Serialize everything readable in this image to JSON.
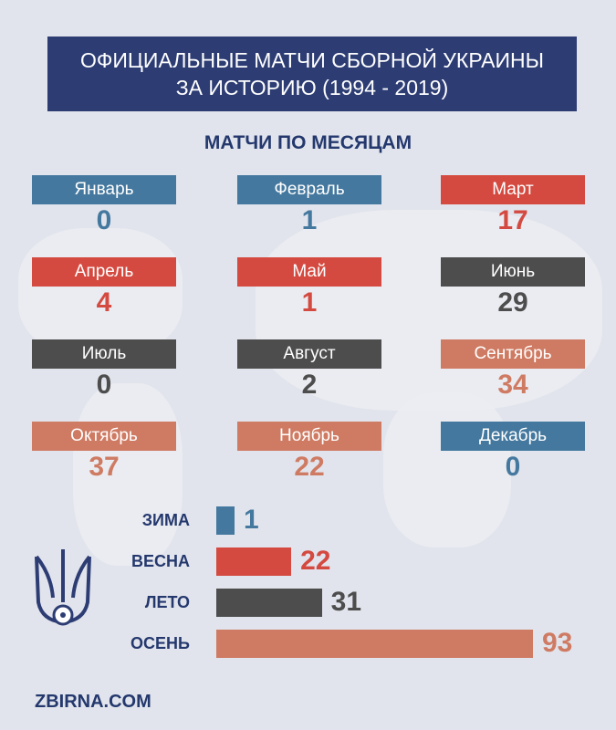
{
  "header": {
    "line1": "ОФИЦИАЛЬНЫЕ МАТЧИ СБОРНОЙ УКРАИНЫ",
    "line2": "ЗА ИСТОРИЮ (1994 - 2019)"
  },
  "subtitle": "МАТЧИ ПО МЕСЯЦАМ",
  "colors": {
    "winter": "#44789e",
    "spring": "#d44a40",
    "summer": "#4d4d4d",
    "autumn": "#cf7b63"
  },
  "chart_data": {
    "type": "bar",
    "title": "МАТЧИ ПО МЕСЯЦАМ",
    "months": [
      {
        "name": "Январь",
        "value": "0",
        "season": "winter"
      },
      {
        "name": "Февраль",
        "value": "1",
        "season": "winter"
      },
      {
        "name": "Март",
        "value": "17",
        "season": "spring"
      },
      {
        "name": "Апрель",
        "value": "4",
        "season": "spring"
      },
      {
        "name": "Май",
        "value": "1",
        "season": "spring"
      },
      {
        "name": "Июнь",
        "value": "29",
        "season": "summer"
      },
      {
        "name": "Июль",
        "value": "0",
        "season": "summer"
      },
      {
        "name": "Август",
        "value": "2",
        "season": "summer"
      },
      {
        "name": "Сентябрь",
        "value": "34",
        "season": "autumn"
      },
      {
        "name": "Октябрь",
        "value": "37",
        "season": "autumn"
      },
      {
        "name": "Ноябрь",
        "value": "22",
        "season": "autumn"
      },
      {
        "name": "Декабрь",
        "value": "0",
        "season": "winter"
      }
    ],
    "categories": [
      "ЗИМА",
      "ВЕСНА",
      "ЛЕТО",
      "ОСЕНЬ"
    ],
    "values": [
      1,
      22,
      31,
      93
    ],
    "seasons": [
      "winter",
      "spring",
      "summer",
      "autumn"
    ]
  },
  "footer": "ZBIRNA.COM"
}
